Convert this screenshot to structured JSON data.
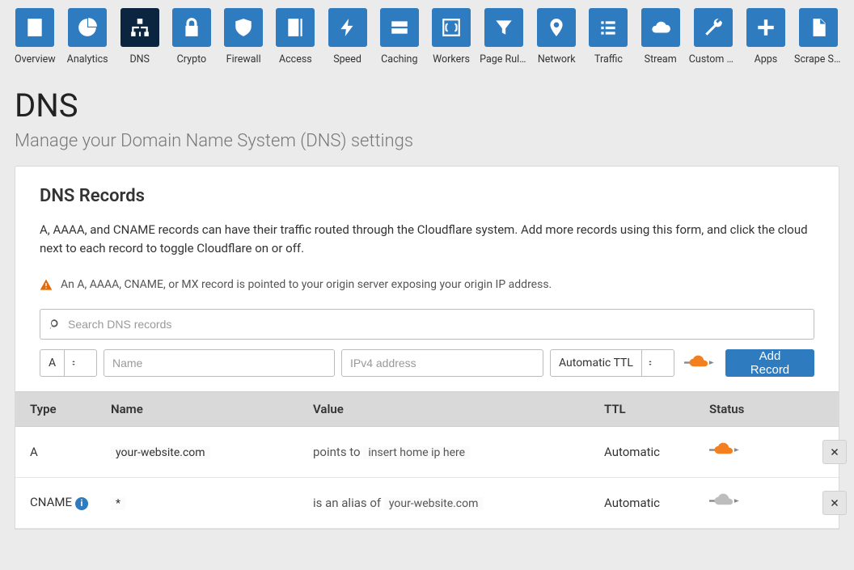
{
  "colors": {
    "tile": "#2f7bbf",
    "tile_active": "#0b2540",
    "accent_orange": "#f38020",
    "page_bg": "#ebebeb",
    "header_bar": "#d9d9d9"
  },
  "nav": [
    {
      "label": "Overview",
      "icon": "doc",
      "active": false
    },
    {
      "label": "Analytics",
      "icon": "pie",
      "active": false
    },
    {
      "label": "DNS",
      "icon": "network",
      "active": true
    },
    {
      "label": "Crypto",
      "icon": "lock",
      "active": false
    },
    {
      "label": "Firewall",
      "icon": "shield",
      "active": false
    },
    {
      "label": "Access",
      "icon": "door",
      "active": false
    },
    {
      "label": "Speed",
      "icon": "bolt",
      "active": false
    },
    {
      "label": "Caching",
      "icon": "drive",
      "active": false
    },
    {
      "label": "Workers",
      "icon": "braces",
      "active": false
    },
    {
      "label": "Page Rules",
      "icon": "funnel",
      "active": false
    },
    {
      "label": "Network",
      "icon": "pin",
      "active": false
    },
    {
      "label": "Traffic",
      "icon": "list",
      "active": false
    },
    {
      "label": "Stream",
      "icon": "cloud",
      "active": false
    },
    {
      "label": "Custom P...",
      "icon": "wrench",
      "active": false
    },
    {
      "label": "Apps",
      "icon": "plus",
      "active": false
    },
    {
      "label": "Scrape Shi...",
      "icon": "file",
      "active": false
    }
  ],
  "header": {
    "title": "DNS",
    "subtitle": "Manage your Domain Name System (DNS) settings"
  },
  "card": {
    "title": "DNS Records",
    "desc": "A, AAAA, and CNAME records can have their traffic routed through the Cloudflare system. Add more records using this form, and click the cloud next to each record to toggle Cloudflare on or off.",
    "warning": "An A, AAAA, CNAME, or MX record is pointed to your origin server exposing your origin IP address."
  },
  "search": {
    "placeholder": "Search DNS records"
  },
  "form": {
    "type_value": "A",
    "name_placeholder": "Name",
    "value_placeholder": "IPv4 address",
    "ttl_value": "Automatic TTL",
    "add_button": "Add Record"
  },
  "table": {
    "columns": [
      "Type",
      "Name",
      "Value",
      "TTL",
      "Status"
    ],
    "rows": [
      {
        "type": "A",
        "name": "your-website.com",
        "value_prefix": "points to ",
        "value_highlight": "insert home ip here",
        "ttl": "Automatic",
        "proxied": true,
        "info": false
      },
      {
        "type": "CNAME",
        "name": "*",
        "value_prefix": "is an alias of ",
        "value_highlight": "your-website.com",
        "ttl": "Automatic",
        "proxied": false,
        "info": true
      }
    ]
  }
}
